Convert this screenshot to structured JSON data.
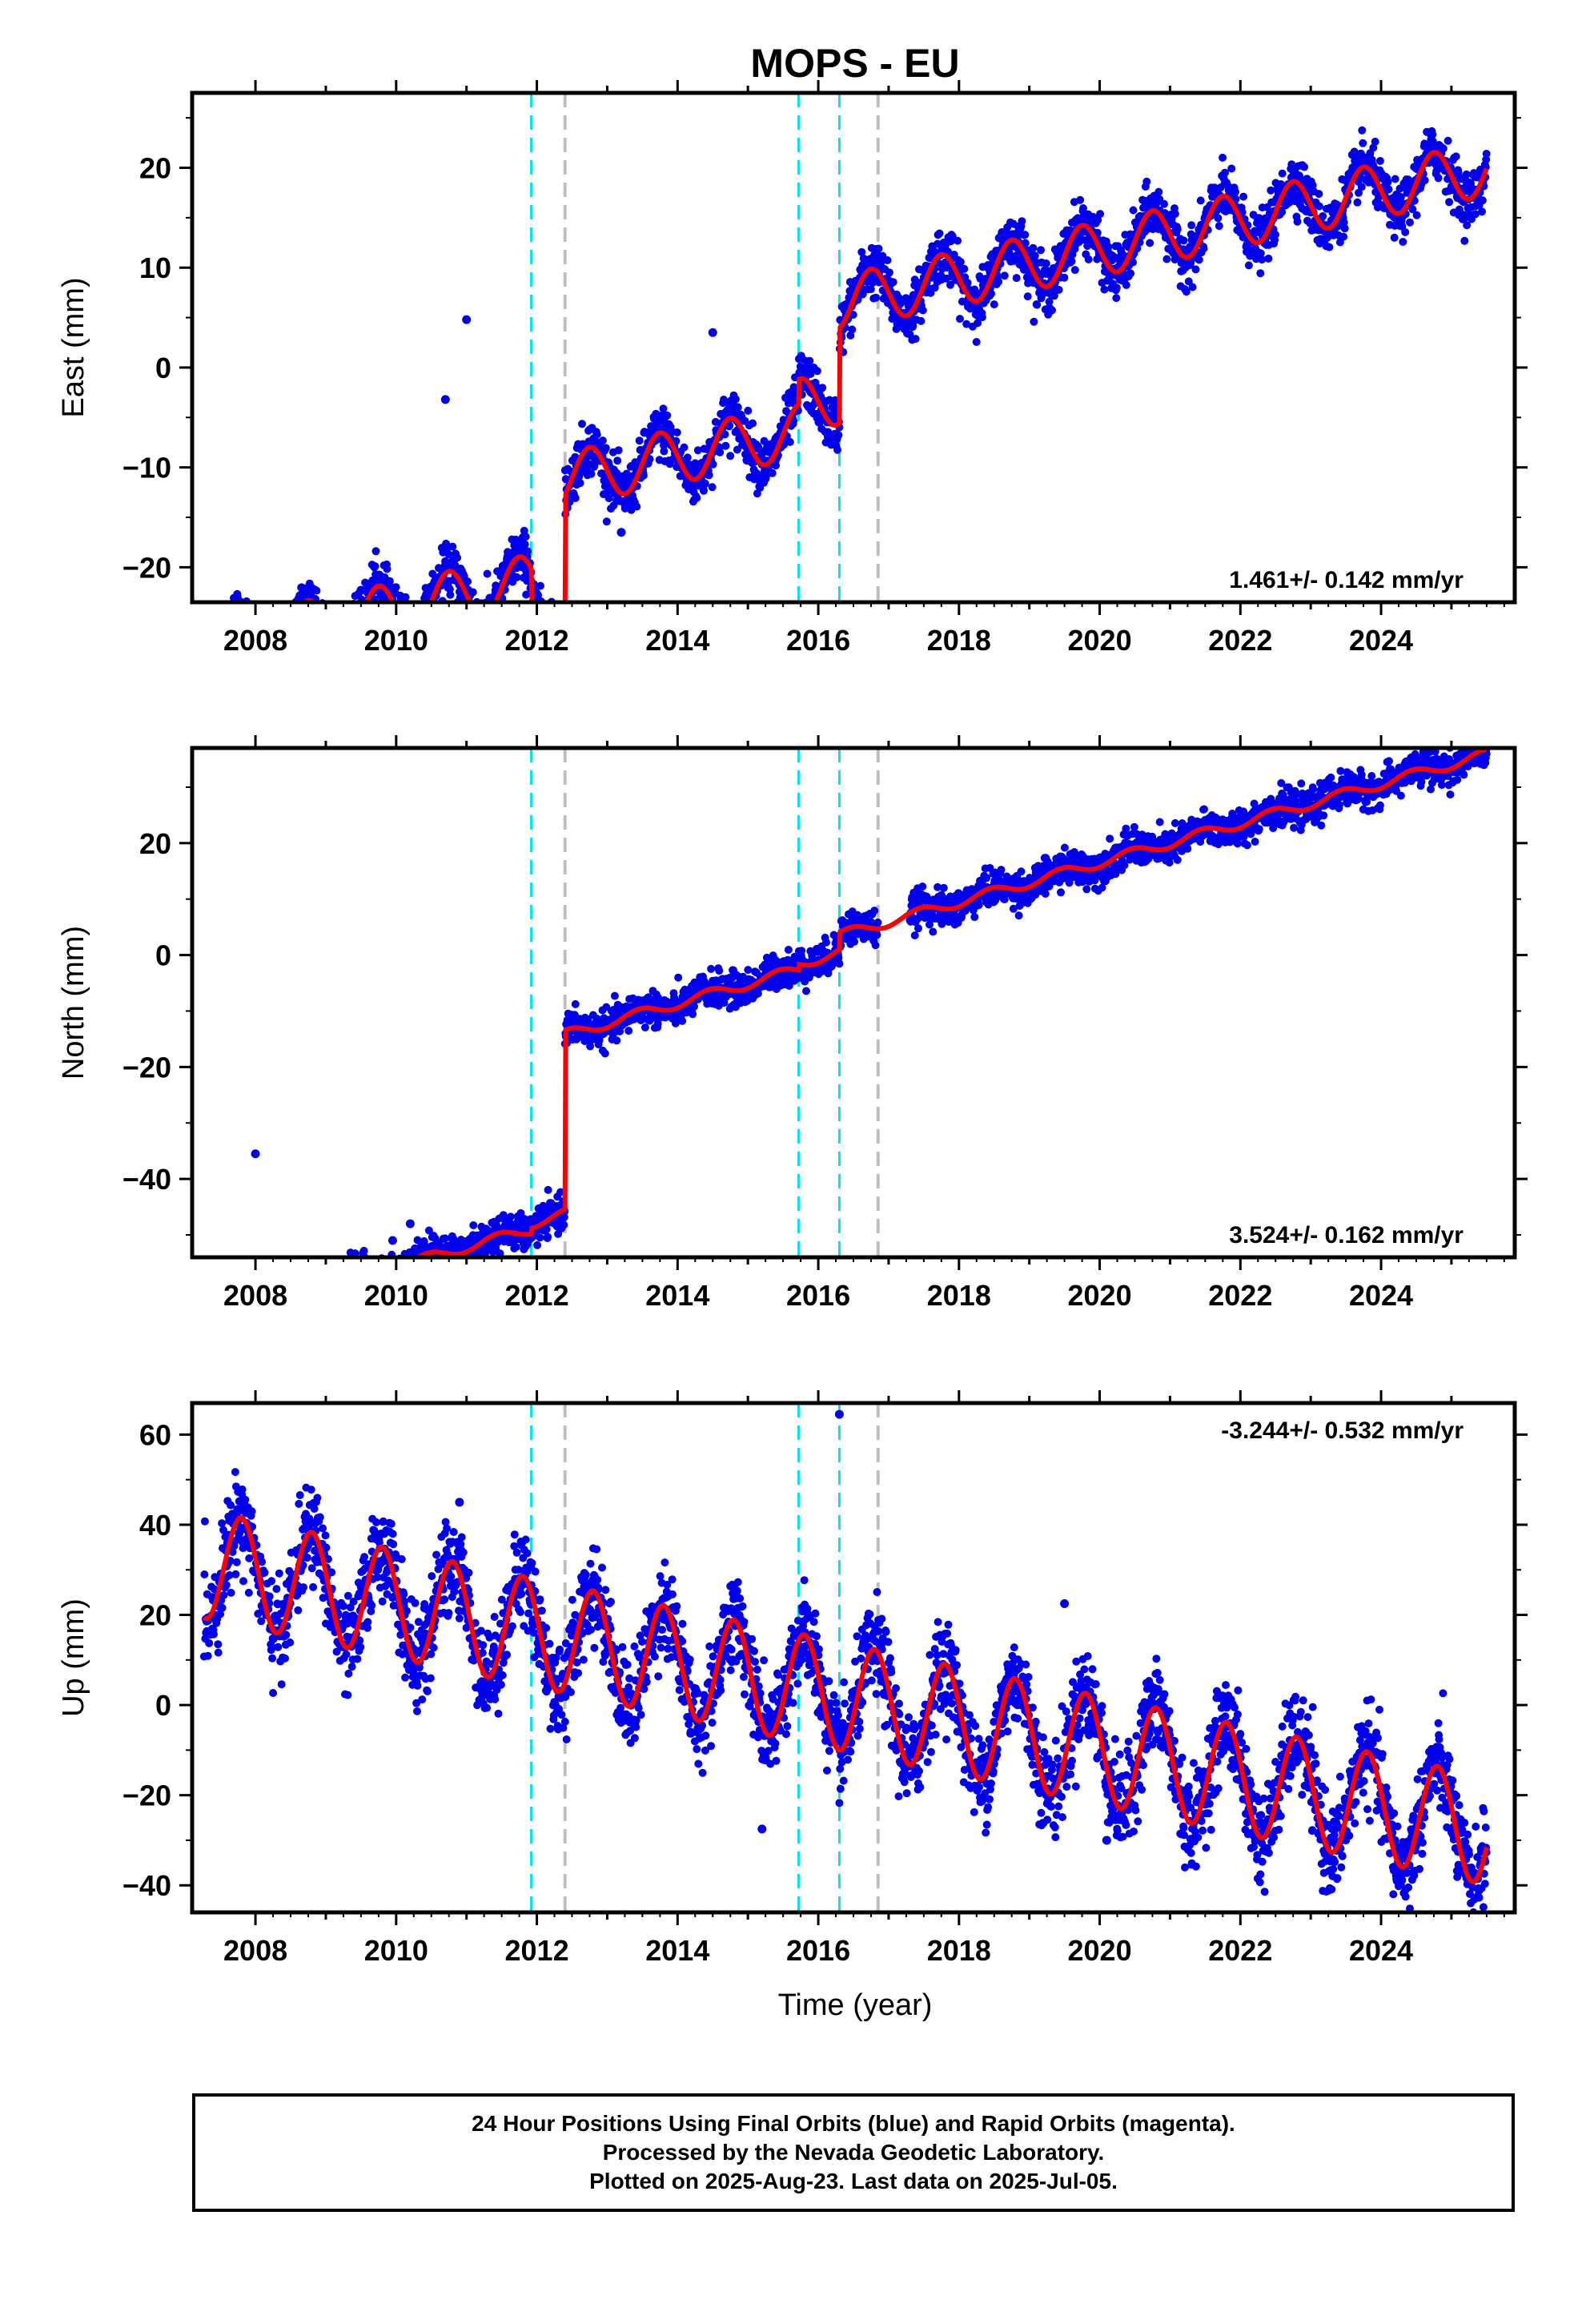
{
  "title": "MOPS - EU",
  "xlabel": "Time (year)",
  "footer": {
    "line1": "24 Hour Positions Using Final Orbits (blue) and Rapid Orbits (magenta).",
    "line2": "Processed by the Nevada Geodetic Laboratory.",
    "line3": "Plotted on 2025-Aug-23. Last data on 2025-Jul-05."
  },
  "colors": {
    "data_points": "#0000ee",
    "model_fit": "#ff0000",
    "equipment_change": "#00e5ee",
    "other_event": "#bebebe"
  },
  "chart_data": [
    {
      "type": "scatter",
      "name": "east",
      "ylabel": "East (mm)",
      "rate_label": "1.461+/- 0.142 mm/yr",
      "rate_position": "bottom-right",
      "xlim": [
        2007.1,
        2025.9
      ],
      "ylim": [
        -23.5,
        27.5
      ],
      "yticks": [
        -20,
        -10,
        0,
        10,
        20
      ],
      "xticks": [
        2008,
        2010,
        2012,
        2014,
        2016,
        2018,
        2020,
        2022,
        2024
      ],
      "cyan_events": [
        2011.92,
        2015.72,
        2016.3
      ],
      "gray_events": [
        2012.4,
        2016.85
      ],
      "model": {
        "segments": [
          [
            2007.27,
            2011.92,
            -15.0
          ],
          [
            2011.92,
            2012.4,
            -18.0
          ],
          [
            2012.4,
            2015.72,
            -5.5
          ],
          [
            2015.72,
            2016.3,
            -3.0
          ],
          [
            2016.3,
            2025.5,
            6.5
          ]
        ],
        "rate": 1.461,
        "ref_year": 2016.3,
        "amp": 2.7,
        "phase": 0.5,
        "noise": 1.3
      },
      "outliers": [
        [
          2011.0,
          4.8
        ],
        [
          2010.7,
          -3.2
        ],
        [
          2009.5,
          -22.3
        ],
        [
          2013.2,
          -16.5
        ],
        [
          2014.5,
          3.5
        ]
      ]
    },
    {
      "type": "scatter",
      "name": "north",
      "ylabel": "North (mm)",
      "rate_label": "3.524+/- 0.162 mm/yr",
      "rate_position": "bottom-right",
      "xlim": [
        2007.1,
        2025.9
      ],
      "ylim": [
        -54,
        37
      ],
      "yticks": [
        -40,
        -20,
        0,
        20
      ],
      "xticks": [
        2008,
        2010,
        2012,
        2014,
        2016,
        2018,
        2020,
        2022,
        2024
      ],
      "cyan_events": [
        2011.92,
        2015.72,
        2016.3
      ],
      "gray_events": [
        2012.4,
        2016.85
      ],
      "model": {
        "segments": [
          [
            2007.27,
            2011.92,
            -33.5
          ],
          [
            2011.92,
            2012.4,
            -32.5
          ],
          [
            2012.4,
            2015.72,
            -0.5
          ],
          [
            2015.72,
            2016.3,
            0.5
          ],
          [
            2016.3,
            2025.5,
            3.5
          ]
        ],
        "rate": 3.524,
        "ref_year": 2016.3,
        "amp": 0.9,
        "phase": 0.2,
        "noise": 1.5
      },
      "gap": [
        2016.85,
        2017.3
      ],
      "outliers": [
        [
          2009.95,
          -51
        ],
        [
          2010.2,
          -48
        ],
        [
          2008.0,
          -35.5
        ],
        [
          2015.5,
          -3.5
        ]
      ]
    },
    {
      "type": "scatter",
      "name": "up",
      "ylabel": "Up (mm)",
      "rate_label": "-3.244+/- 0.532 mm/yr",
      "rate_position": "top-right",
      "xlim": [
        2007.1,
        2025.9
      ],
      "ylim": [
        -46,
        67
      ],
      "yticks": [
        -40,
        -20,
        0,
        20,
        40,
        60
      ],
      "xticks": [
        2008,
        2010,
        2012,
        2014,
        2016,
        2018,
        2020,
        2022,
        2024
      ],
      "cyan_events": [
        2011.92,
        2015.72,
        2016.3
      ],
      "gray_events": [
        2012.4,
        2016.85
      ],
      "model": {
        "segments": [
          [
            2007.27,
            2025.5,
            2.0
          ]
        ],
        "rate": -3.244,
        "ref_year": 2016.3,
        "amp": 12.0,
        "phase": 0.55,
        "noise": 5.0
      },
      "outliers": [
        [
          2016.3,
          64.5
        ],
        [
          2015.2,
          -27.5
        ],
        [
          2020.1,
          -30
        ],
        [
          2019.5,
          22.5
        ],
        [
          2010.9,
          45
        ]
      ]
    }
  ]
}
